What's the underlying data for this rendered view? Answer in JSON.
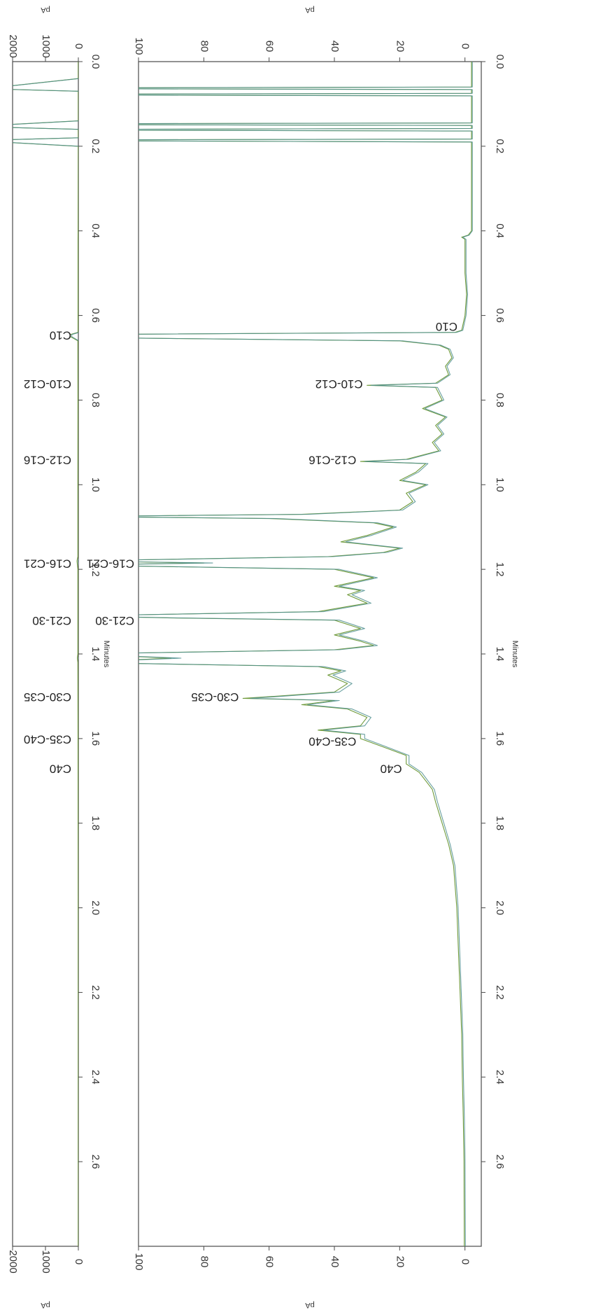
{
  "chart_data": [
    {
      "type": "line",
      "panel": "overview",
      "orientation": "rotated-90",
      "xlabel": "Minutes",
      "ylabel": "pA",
      "xlim": [
        0.0,
        2.8
      ],
      "ylim": [
        0,
        2000
      ],
      "x_ticks": [
        "0.0",
        "0.2",
        "0.4",
        "0.6",
        "0.8",
        "1.0",
        "1.2",
        "1.4",
        "1.6",
        "1.8",
        "2.0",
        "2.2",
        "2.4",
        "2.6"
      ],
      "y_ticks": [
        "0",
        "1000",
        "2000"
      ],
      "grid": false,
      "colors": {
        "trace_green": "#6f9a3a",
        "trace_teal": "#4f8f8f",
        "trace_olive": "#9a9a2a",
        "frame": "#4a4a4a"
      },
      "series": [
        {
          "values": [
            [
              0.0,
              5
            ],
            [
              0.04,
              5
            ],
            [
              0.06,
              2000
            ],
            [
              0.065,
              2000
            ],
            [
              0.07,
              5
            ],
            [
              0.14,
              5
            ],
            [
              0.15,
              2000
            ],
            [
              0.155,
              2000
            ],
            [
              0.16,
              5
            ],
            [
              0.18,
              5
            ],
            [
              0.185,
              2000
            ],
            [
              0.19,
              2000
            ],
            [
              0.2,
              5
            ],
            [
              0.4,
              8
            ],
            [
              0.42,
              10
            ],
            [
              0.6,
              10
            ],
            [
              0.64,
              10
            ],
            [
              0.645,
              240
            ],
            [
              0.65,
              240
            ],
            [
              0.66,
              15
            ],
            [
              0.8,
              12
            ],
            [
              1.0,
              14
            ],
            [
              1.17,
              14
            ],
            [
              1.18,
              40
            ],
            [
              1.2,
              14
            ],
            [
              1.4,
              14
            ],
            [
              1.41,
              30
            ],
            [
              1.42,
              14
            ],
            [
              1.6,
              10
            ],
            [
              2.0,
              6
            ],
            [
              2.8,
              5
            ]
          ]
        }
      ],
      "annotations": [
        {
          "x": 0.645,
          "text": "C10"
        },
        {
          "x": 0.76,
          "text": "C10-C12"
        },
        {
          "x": 0.94,
          "text": "C12-C16"
        },
        {
          "x": 1.185,
          "text": "C16-C21"
        },
        {
          "x": 1.32,
          "text": "C21-30"
        },
        {
          "x": 1.5,
          "text": "C30-C35"
        },
        {
          "x": 1.6,
          "text": "C35-C40"
        },
        {
          "x": 1.67,
          "text": "C40"
        }
      ]
    },
    {
      "type": "line",
      "panel": "zoom",
      "orientation": "rotated-90",
      "xlabel": "Minutes",
      "ylabel": "pA",
      "xlim": [
        0.0,
        2.8
      ],
      "ylim": [
        -5,
        100
      ],
      "x_ticks": [
        "0.0",
        "0.2",
        "0.4",
        "0.6",
        "0.8",
        "1.0",
        "1.2",
        "1.4",
        "1.6",
        "1.8",
        "2.0",
        "2.2",
        "2.4",
        "2.6"
      ],
      "y_ticks": [
        "0",
        "20",
        "40",
        "60",
        "80",
        "100"
      ],
      "grid": false,
      "colors": {
        "trace_green": "#6f9a3a",
        "trace_teal": "#4f8f8f",
        "trace_olive": "#9a9a2a",
        "frame": "#4a4a4a"
      },
      "series": [
        {
          "values": [
            [
              0.0,
              -2
            ],
            [
              0.06,
              -2
            ],
            [
              0.062,
              100
            ],
            [
              0.064,
              100
            ],
            [
              0.066,
              -2
            ],
            [
              0.075,
              -2
            ],
            [
              0.077,
              100
            ],
            [
              0.079,
              100
            ],
            [
              0.081,
              -2
            ],
            [
              0.145,
              -2
            ],
            [
              0.147,
              100
            ],
            [
              0.149,
              100
            ],
            [
              0.151,
              -2
            ],
            [
              0.158,
              -2
            ],
            [
              0.16,
              100
            ],
            [
              0.162,
              100
            ],
            [
              0.164,
              -2
            ],
            [
              0.183,
              -2
            ],
            [
              0.185,
              100
            ],
            [
              0.187,
              100
            ],
            [
              0.19,
              -2
            ],
            [
              0.4,
              -2
            ],
            [
              0.41,
              -1
            ],
            [
              0.415,
              1
            ],
            [
              0.42,
              0
            ],
            [
              0.5,
              0
            ],
            [
              0.55,
              -0.5
            ],
            [
              0.6,
              0
            ],
            [
              0.635,
              1
            ],
            [
              0.64,
              3
            ],
            [
              0.645,
              100
            ],
            [
              0.652,
              100
            ],
            [
              0.66,
              20
            ],
            [
              0.67,
              8
            ],
            [
              0.68,
              5
            ],
            [
              0.7,
              4
            ],
            [
              0.72,
              6
            ],
            [
              0.74,
              5
            ],
            [
              0.76,
              9
            ],
            [
              0.765,
              30
            ],
            [
              0.77,
              9
            ],
            [
              0.8,
              7
            ],
            [
              0.82,
              13
            ],
            [
              0.84,
              6
            ],
            [
              0.86,
              9
            ],
            [
              0.88,
              7
            ],
            [
              0.9,
              10
            ],
            [
              0.92,
              8
            ],
            [
              0.94,
              18
            ],
            [
              0.945,
              32
            ],
            [
              0.95,
              12
            ],
            [
              0.97,
              15
            ],
            [
              0.99,
              20
            ],
            [
              1.0,
              12
            ],
            [
              1.02,
              18
            ],
            [
              1.04,
              16
            ],
            [
              1.06,
              20
            ],
            [
              1.07,
              50
            ],
            [
              1.075,
              100
            ],
            [
              1.08,
              60
            ],
            [
              1.09,
              28
            ],
            [
              1.1,
              22
            ],
            [
              1.12,
              30
            ],
            [
              1.135,
              38
            ],
            [
              1.15,
              20
            ],
            [
              1.16,
              25
            ],
            [
              1.17,
              42
            ],
            [
              1.18,
              100
            ],
            [
              1.185,
              80
            ],
            [
              1.19,
              100
            ],
            [
              1.2,
              40
            ],
            [
              1.22,
              28
            ],
            [
              1.24,
              40
            ],
            [
              1.25,
              32
            ],
            [
              1.26,
              36
            ],
            [
              1.28,
              30
            ],
            [
              1.3,
              45
            ],
            [
              1.31,
              100
            ],
            [
              1.315,
              90
            ],
            [
              1.32,
              40
            ],
            [
              1.34,
              32
            ],
            [
              1.355,
              40
            ],
            [
              1.37,
              32
            ],
            [
              1.38,
              28
            ],
            [
              1.39,
              40
            ],
            [
              1.4,
              100
            ],
            [
              1.41,
              90
            ],
            [
              1.42,
              100
            ],
            [
              1.43,
              45
            ],
            [
              1.44,
              38
            ],
            [
              1.45,
              42
            ],
            [
              1.47,
              36
            ],
            [
              1.49,
              40
            ],
            [
              1.5,
              58
            ],
            [
              1.505,
              68
            ],
            [
              1.51,
              40
            ],
            [
              1.52,
              50
            ],
            [
              1.53,
              36
            ],
            [
              1.55,
              30
            ],
            [
              1.57,
              32
            ],
            [
              1.58,
              45
            ],
            [
              1.59,
              32
            ],
            [
              1.6,
              32
            ],
            [
              1.62,
              25
            ],
            [
              1.64,
              18
            ],
            [
              1.66,
              18
            ],
            [
              1.68,
              14
            ],
            [
              1.7,
              12
            ],
            [
              1.72,
              10
            ],
            [
              1.75,
              9
            ],
            [
              1.8,
              7
            ],
            [
              1.85,
              5
            ],
            [
              1.9,
              3.5
            ],
            [
              2.0,
              2.5
            ],
            [
              2.1,
              2
            ],
            [
              2.2,
              1.5
            ],
            [
              2.3,
              1
            ],
            [
              2.4,
              0.8
            ],
            [
              2.5,
              0.5
            ],
            [
              2.6,
              0.3
            ],
            [
              2.8,
              0.2
            ]
          ]
        }
      ],
      "annotations": [
        {
          "x": 0.625,
          "text": "C10"
        },
        {
          "x": 0.76,
          "text": "C10-C12"
        },
        {
          "x": 0.94,
          "text": "C12-C16"
        },
        {
          "x": 1.185,
          "text": "C16-C21"
        },
        {
          "x": 1.32,
          "text": "C21-30"
        },
        {
          "x": 1.5,
          "text": "C30-C35"
        },
        {
          "x": 1.605,
          "text": "C35-C40"
        },
        {
          "x": 1.67,
          "text": "C40"
        }
      ]
    }
  ]
}
